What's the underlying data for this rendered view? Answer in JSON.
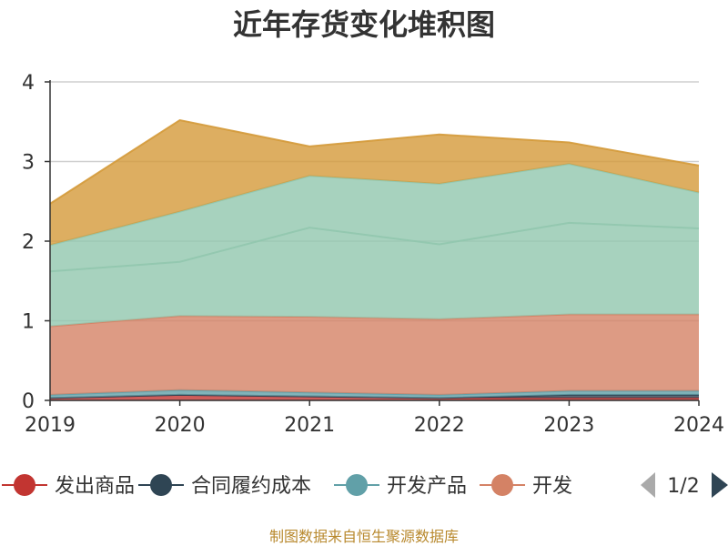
{
  "chart_data": {
    "type": "area",
    "stacked": true,
    "title": "近年存货变化堆积图",
    "categories": [
      "2019",
      "2020",
      "2021",
      "2022",
      "2023",
      "2024"
    ],
    "ylim": [
      0,
      4
    ],
    "yticks": [
      0,
      1,
      2,
      3,
      4
    ],
    "grid": true,
    "series": [
      {
        "name": "发出商品",
        "color": "#c23531",
        "values": [
          0.03,
          0.07,
          0.05,
          0.03,
          0.03,
          0.03
        ]
      },
      {
        "name": "合同履约成本",
        "color": "#2f4554",
        "values": [
          0.0,
          0.0,
          0.0,
          0.0,
          0.04,
          0.04
        ]
      },
      {
        "name": "开发产品",
        "color": "#61a0a8",
        "values": [
          0.04,
          0.06,
          0.05,
          0.04,
          0.05,
          0.05
        ]
      },
      {
        "name": "开发",
        "color": "#d48265",
        "values": [
          0.86,
          0.93,
          0.95,
          0.95,
          0.96,
          0.96
        ]
      },
      {
        "name": "",
        "color": "#91c7ae",
        "values": [
          0.69,
          0.68,
          1.12,
          0.94,
          1.15,
          1.08
        ]
      },
      {
        "name": "",
        "color": "#91c7ae",
        "values": [
          0.33,
          0.63,
          0.65,
          0.76,
          0.74,
          0.45
        ]
      },
      {
        "name": "",
        "color": "#d49a3a",
        "values": [
          0.52,
          1.15,
          0.37,
          0.62,
          0.27,
          0.34
        ]
      }
    ]
  },
  "legend": {
    "items": [
      {
        "label": "发出商品",
        "color": "#c23531"
      },
      {
        "label": "合同履约成本",
        "color": "#2f4554"
      },
      {
        "label": "开发产品",
        "color": "#61a0a8"
      },
      {
        "label": "开发",
        "color": "#d48265"
      }
    ],
    "page": "1/2"
  },
  "source_note": "制图数据来自恒生聚源数据库"
}
